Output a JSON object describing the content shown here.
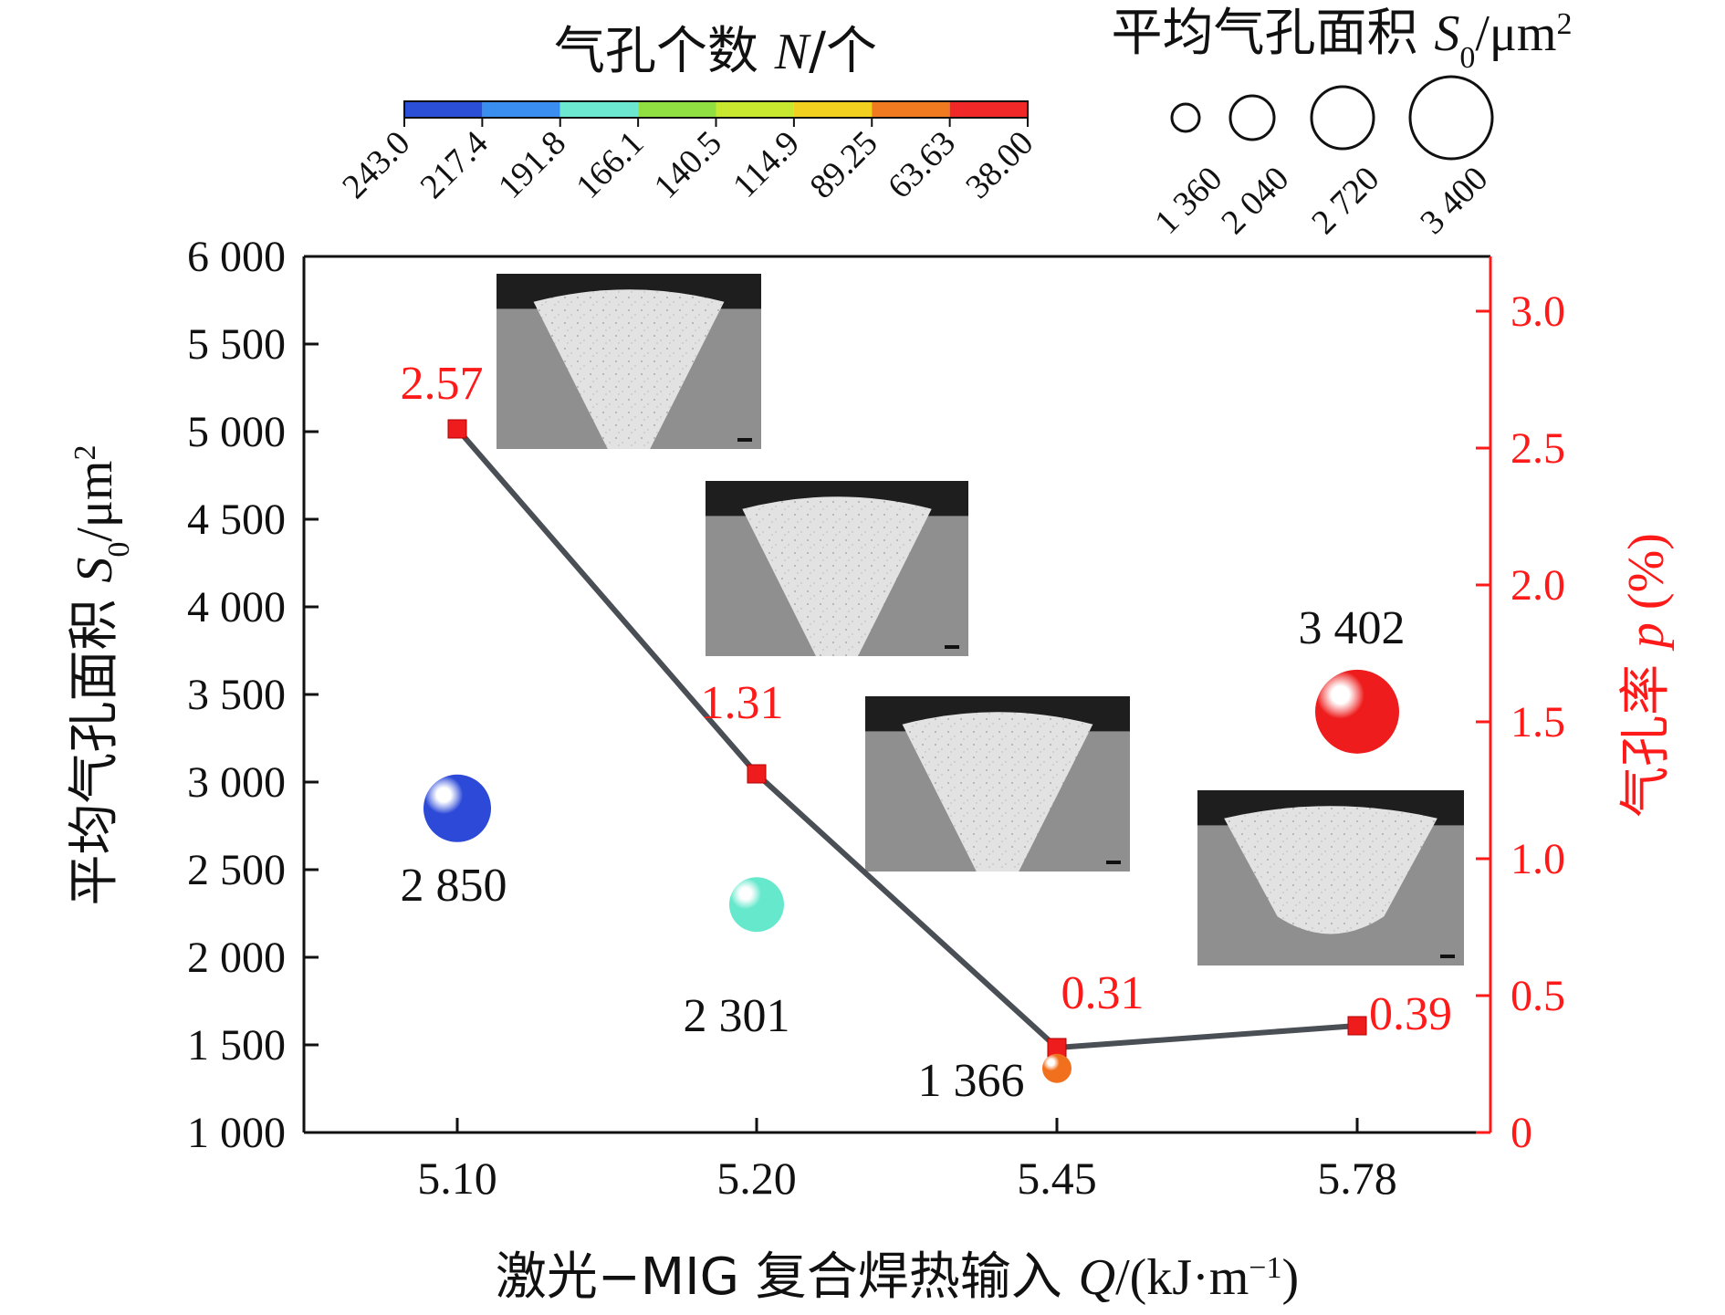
{
  "chart_data": {
    "type": "scatter",
    "colorbar": {
      "title_cn": "气孔个数 ",
      "title_var": "N",
      "title_unit": "/个",
      "ticks": [
        "243.0",
        "217.4",
        "191.8",
        "166.1",
        "140.5",
        "114.9",
        "89.25",
        "63.63",
        "38.00"
      ],
      "colors": [
        "#2b4fd6",
        "#3a8ef0",
        "#6de8d0",
        "#8fe040",
        "#c8e830",
        "#f2d020",
        "#f07a20",
        "#f02828"
      ]
    },
    "size_legend": {
      "title_cn": "平均气孔面积 ",
      "title_var": "S",
      "title_sub": "0",
      "title_unit": "/μm",
      "title_sup": "2",
      "labels": [
        "1 360",
        "2 040",
        "2 720",
        "3 400"
      ],
      "sizes": [
        1360,
        2040,
        2720,
        3400
      ]
    },
    "categories": [
      "5.10",
      "5.20",
      "5.45",
      "5.78"
    ],
    "xlabel_cn": "激光−MIG 复合焊热输入 ",
    "xlabel_var": "Q",
    "xlabel_unit": "/(kJ·m",
    "xlabel_sup": "−1",
    "xlabel_end": ")",
    "ylabel_cn": "平均气孔面积 ",
    "ylabel_var": "S",
    "ylabel_sub": "0",
    "ylabel_unit": "/μm",
    "ylabel_sup": "2",
    "y2label_cn": "气孔率 ",
    "y2label_var": "p",
    "y2label_unit": " (%)",
    "ylim": [
      1000,
      6000
    ],
    "yticks": [
      1000,
      1500,
      2000,
      2500,
      3000,
      3500,
      4000,
      4500,
      5000,
      5500,
      6000
    ],
    "ytick_labels": [
      "1 000",
      "1 500",
      "2 000",
      "2 500",
      "3 000",
      "3 500",
      "4 000",
      "4 500",
      "5 000",
      "5 500",
      "6 000"
    ],
    "y2lim": [
      0,
      3.2
    ],
    "y2ticks": [
      0,
      0.5,
      1.0,
      1.5,
      2.0,
      2.5,
      3.0
    ],
    "y2tick_labels": [
      "0",
      "0.5",
      "1.0",
      "1.5",
      "2.0",
      "2.5",
      "3.0"
    ],
    "bubbles": [
      {
        "value": 2850,
        "label": "2 850",
        "color": "#2c49d8"
      },
      {
        "value": 2301,
        "label": "2 301",
        "color": "#66e8cc"
      },
      {
        "value": 1366,
        "label": "1 366",
        "color": "#f0701e"
      },
      {
        "value": 3402,
        "label": "3 402",
        "color": "#ee1c1c"
      }
    ],
    "porosity": {
      "values": [
        2.57,
        1.31,
        0.31,
        0.39
      ],
      "labels": [
        "2.57",
        "1.31",
        "0.31",
        "0.39"
      ],
      "line_color": "#4a4f55",
      "marker_color": "#ee1c1c"
    }
  }
}
